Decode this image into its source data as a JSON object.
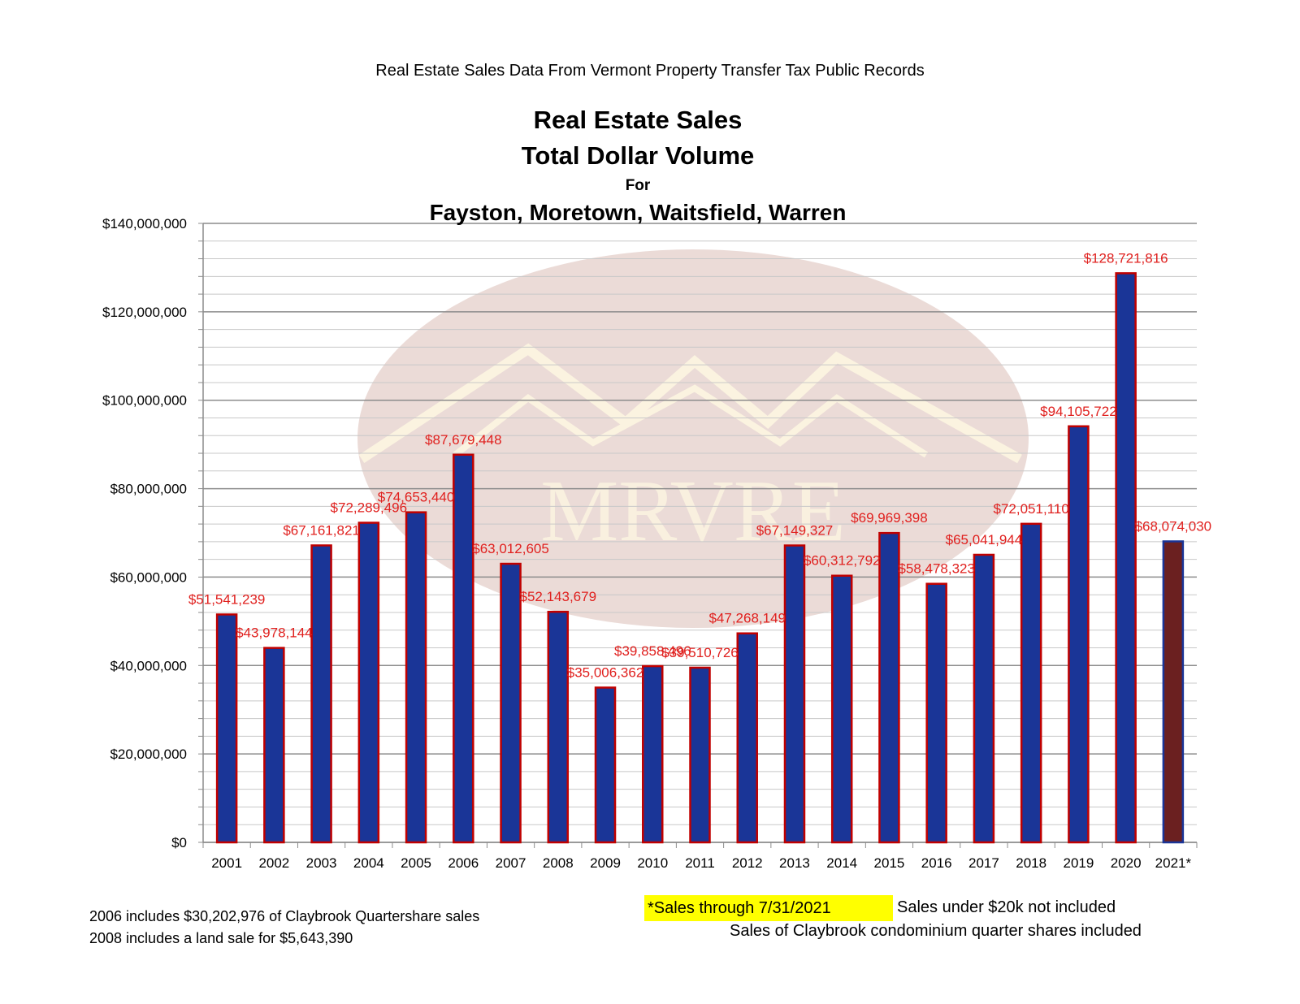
{
  "header": {
    "source_note": "Real Estate Sales Data From Vermont Property Transfer Tax Public Records",
    "title_line1": "Real Estate Sales",
    "title_line2": "Total Dollar Volume",
    "title_for": "For",
    "title_towns": "Fayston, Moretown, Waitsfield, Warren"
  },
  "watermark": {
    "text": "MRVRE"
  },
  "colors": {
    "bar_fill": "#1a3597",
    "bar_fill_partial": "#6b2020",
    "bar_border": "#c00000",
    "label_color": "#e0201e",
    "grid_major": "#8c8c8c",
    "grid_minor": "#c8c8c8",
    "watermark_oval": "#e8d5d0",
    "watermark_lines": "#fbf3e0"
  },
  "chart_data": {
    "type": "bar",
    "title": "Real Estate Sales Total Dollar Volume For Fayston, Moretown, Waitsfield, Warren",
    "xlabel": "",
    "ylabel": "",
    "ylim": [
      0,
      140000000
    ],
    "yticks": [
      0,
      20000000,
      40000000,
      60000000,
      80000000,
      100000000,
      120000000,
      140000000
    ],
    "ytick_labels": [
      "$0",
      "$20,000,000",
      "$40,000,000",
      "$60,000,000",
      "$80,000,000",
      "$100,000,000",
      "$120,000,000",
      "$140,000,000"
    ],
    "grid": true,
    "legend": "none",
    "categories": [
      "2001",
      "2002",
      "2003",
      "2004",
      "2005",
      "2006",
      "2007",
      "2008",
      "2009",
      "2010",
      "2011",
      "2012",
      "2013",
      "2014",
      "2015",
      "2016",
      "2017",
      "2018",
      "2019",
      "2020",
      "2021*"
    ],
    "values": [
      51541239,
      43978144,
      67161821,
      72289496,
      74653440,
      87679448,
      63012605,
      52143679,
      35006362,
      39858496,
      39510726,
      47268149,
      67149327,
      60312792,
      69969398,
      58478323,
      65041944,
      72051110,
      94105722,
      128721816,
      68074030
    ],
    "data_labels": [
      "$51,541,239",
      "$43,978,144",
      "$67,161,821",
      "$72,289,496",
      "$74,653,440",
      "$87,679,448",
      "$63,012,605",
      "$52,143,679",
      "$35,006,362",
      "$39,858,496",
      "$39,510,726",
      "$47,268,149",
      "$67,149,327",
      "$60,312,792",
      "$69,969,398",
      "$58,478,323",
      "$65,041,944",
      "$72,051,110",
      "$94,105,722",
      "$128,721,816",
      "$68,074,030"
    ],
    "partial_year_index": 20
  },
  "footer": {
    "note_2006": "2006 includes $30,202,976 of Claybrook Quartershare sales",
    "note_2008": "2008 includes a land sale for $5,643,390",
    "sales_through": "*Sales through 7/31/2021",
    "under_20k": "Sales under $20k not included",
    "claybrook": "Sales of Claybrook condominium quarter shares included"
  }
}
